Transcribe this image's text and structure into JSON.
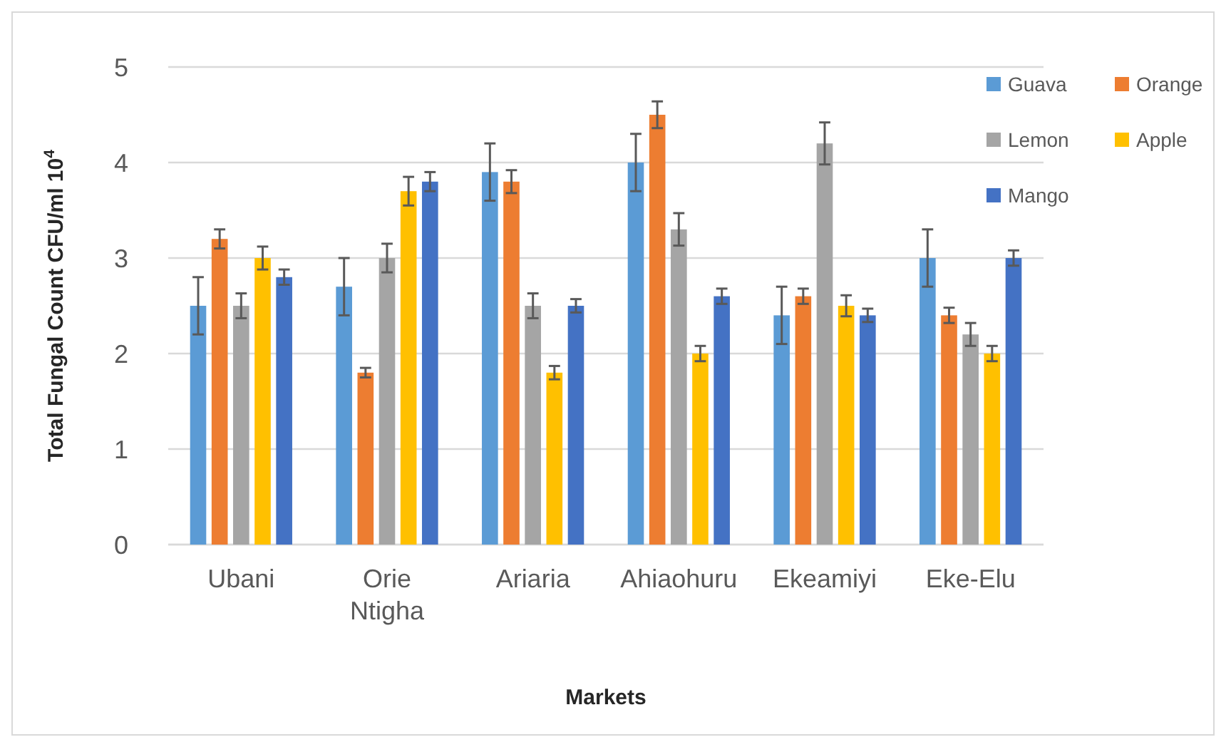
{
  "chart_data": {
    "type": "bar",
    "xlabel": "Markets",
    "ylabel": "Total Fungal Count CFU/ml 10$^{4}$",
    "categories": [
      "Ubani",
      "Orie Ntigha",
      "Ariaria",
      "Ahiaohuru",
      "Ekeamiyi",
      "Eke-Elu"
    ],
    "series": [
      {
        "name": "Guava",
        "color": "#5b9bd5",
        "values": [
          2.5,
          2.7,
          3.9,
          4.0,
          2.4,
          3.0
        ],
        "errors": [
          0.3,
          0.3,
          0.3,
          0.3,
          0.3,
          0.3
        ]
      },
      {
        "name": "Orange",
        "color": "#ed7d31",
        "values": [
          3.2,
          1.8,
          3.8,
          4.5,
          2.6,
          2.4
        ],
        "errors": [
          0.1,
          0.05,
          0.12,
          0.14,
          0.08,
          0.08
        ]
      },
      {
        "name": "Lemon",
        "color": "#a5a5a5",
        "values": [
          2.5,
          3.0,
          2.5,
          3.3,
          4.2,
          2.2
        ],
        "errors": [
          0.13,
          0.15,
          0.13,
          0.17,
          0.22,
          0.12
        ]
      },
      {
        "name": "Apple",
        "color": "#ffc000",
        "values": [
          3.0,
          3.7,
          1.8,
          2.0,
          2.5,
          2.0
        ],
        "errors": [
          0.12,
          0.15,
          0.07,
          0.08,
          0.11,
          0.08
        ]
      },
      {
        "name": "Mango",
        "color": "#4472c4",
        "values": [
          2.8,
          3.8,
          2.5,
          2.6,
          2.4,
          3.0
        ],
        "errors": [
          0.08,
          0.1,
          0.07,
          0.08,
          0.07,
          0.08
        ]
      }
    ],
    "ylim": [
      0,
      5
    ],
    "yticks": [
      0,
      1,
      2,
      3,
      4,
      5
    ],
    "grid": "y",
    "legend": "top right"
  }
}
